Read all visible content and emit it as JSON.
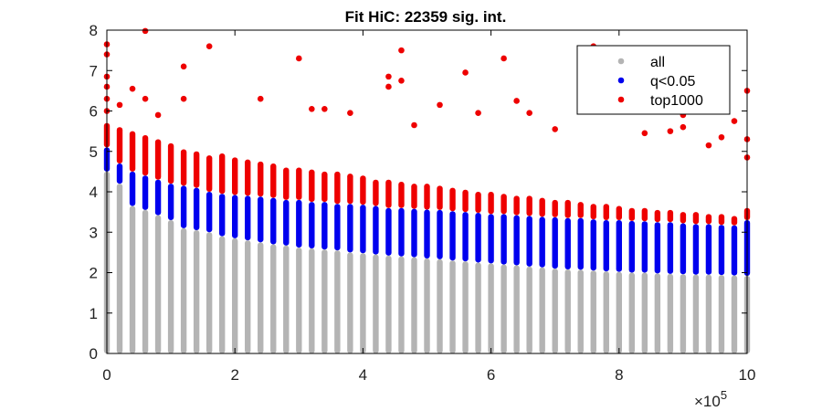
{
  "chart_data": {
    "type": "scatter",
    "title": "Fit HiC: 22359 sig. int.",
    "xlabel": "",
    "ylabel": "",
    "x_exponent_label": "×10",
    "x_exponent_power": "5",
    "xlim": [
      0,
      1000000
    ],
    "ylim": [
      0,
      8
    ],
    "x_ticks": [
      0,
      200000,
      400000,
      600000,
      800000,
      1000000
    ],
    "x_tick_labels": [
      "0",
      "2",
      "4",
      "6",
      "8",
      "10"
    ],
    "y_ticks": [
      0,
      1,
      2,
      3,
      4,
      5,
      6,
      7,
      8
    ],
    "y_tick_labels": [
      "0",
      "1",
      "2",
      "3",
      "4",
      "5",
      "6",
      "7",
      "8"
    ],
    "grid": false,
    "legend_position": "top-right",
    "bin_width": 20000,
    "series": [
      {
        "name": "all",
        "color": "#b4b4b4",
        "description": "per distance bin, points spanning y from 0 to the blue threshold"
      },
      {
        "name": "q<0.05",
        "color": "#0000ee",
        "bin_ranges_note": "per bin [low, high] of significant interactions",
        "bins": [
          [
            0,
            4.5,
            5.1
          ],
          [
            20000,
            4.2,
            4.7
          ],
          [
            40000,
            3.65,
            4.5
          ],
          [
            60000,
            3.55,
            4.4
          ],
          [
            80000,
            3.42,
            4.3
          ],
          [
            100000,
            3.3,
            4.2
          ],
          [
            120000,
            3.1,
            4.15
          ],
          [
            140000,
            3.05,
            4.1
          ],
          [
            160000,
            3.0,
            4.0
          ],
          [
            180000,
            2.9,
            3.95
          ],
          [
            200000,
            2.85,
            3.92
          ],
          [
            220000,
            2.8,
            3.9
          ],
          [
            240000,
            2.75,
            3.88
          ],
          [
            260000,
            2.7,
            3.85
          ],
          [
            280000,
            2.67,
            3.8
          ],
          [
            300000,
            2.62,
            3.8
          ],
          [
            320000,
            2.6,
            3.75
          ],
          [
            340000,
            2.57,
            3.75
          ],
          [
            360000,
            2.55,
            3.7
          ],
          [
            380000,
            2.5,
            3.7
          ],
          [
            400000,
            2.48,
            3.68
          ],
          [
            420000,
            2.45,
            3.65
          ],
          [
            440000,
            2.42,
            3.6
          ],
          [
            460000,
            2.4,
            3.6
          ],
          [
            480000,
            2.38,
            3.58
          ],
          [
            500000,
            2.35,
            3.56
          ],
          [
            520000,
            2.33,
            3.55
          ],
          [
            540000,
            2.3,
            3.52
          ],
          [
            560000,
            2.28,
            3.5
          ],
          [
            580000,
            2.25,
            3.48
          ],
          [
            600000,
            2.23,
            3.45
          ],
          [
            620000,
            2.2,
            3.45
          ],
          [
            640000,
            2.18,
            3.42
          ],
          [
            660000,
            2.15,
            3.4
          ],
          [
            680000,
            2.13,
            3.38
          ],
          [
            700000,
            2.1,
            3.37
          ],
          [
            720000,
            2.08,
            3.35
          ],
          [
            740000,
            2.07,
            3.35
          ],
          [
            760000,
            2.05,
            3.32
          ],
          [
            780000,
            2.03,
            3.3
          ],
          [
            800000,
            2.02,
            3.3
          ],
          [
            820000,
            2.0,
            3.28
          ],
          [
            840000,
            2.0,
            3.27
          ],
          [
            860000,
            1.98,
            3.25
          ],
          [
            880000,
            1.97,
            3.25
          ],
          [
            900000,
            1.96,
            3.22
          ],
          [
            920000,
            1.95,
            3.2
          ],
          [
            940000,
            1.95,
            3.2
          ],
          [
            960000,
            1.94,
            3.18
          ],
          [
            980000,
            1.93,
            3.17
          ],
          [
            1000000,
            1.92,
            3.3
          ]
        ]
      },
      {
        "name": "top1000",
        "color": "#ee0000",
        "bin_ranges_note": "per bin [x, top of dense red column]",
        "dense_tops": [
          [
            0,
            5.7
          ],
          [
            20000,
            5.6
          ],
          [
            40000,
            5.5
          ],
          [
            60000,
            5.4
          ],
          [
            80000,
            5.3
          ],
          [
            100000,
            5.2
          ],
          [
            120000,
            5.05
          ],
          [
            140000,
            5.0
          ],
          [
            160000,
            4.9
          ],
          [
            180000,
            4.95
          ],
          [
            200000,
            4.85
          ],
          [
            220000,
            4.8
          ],
          [
            240000,
            4.75
          ],
          [
            260000,
            4.7
          ],
          [
            280000,
            4.6
          ],
          [
            300000,
            4.6
          ],
          [
            320000,
            4.55
          ],
          [
            340000,
            4.5
          ],
          [
            360000,
            4.5
          ],
          [
            380000,
            4.45
          ],
          [
            400000,
            4.4
          ],
          [
            420000,
            4.3
          ],
          [
            440000,
            4.3
          ],
          [
            460000,
            4.25
          ],
          [
            480000,
            4.2
          ],
          [
            500000,
            4.2
          ],
          [
            520000,
            4.15
          ],
          [
            540000,
            4.1
          ],
          [
            560000,
            4.05
          ],
          [
            580000,
            4.0
          ],
          [
            600000,
            4.0
          ],
          [
            620000,
            3.95
          ],
          [
            640000,
            3.9
          ],
          [
            660000,
            3.9
          ],
          [
            680000,
            3.85
          ],
          [
            700000,
            3.8
          ],
          [
            720000,
            3.8
          ],
          [
            740000,
            3.75
          ],
          [
            760000,
            3.7
          ],
          [
            780000,
            3.7
          ],
          [
            800000,
            3.65
          ],
          [
            820000,
            3.6
          ],
          [
            840000,
            3.6
          ],
          [
            860000,
            3.55
          ],
          [
            880000,
            3.55
          ],
          [
            900000,
            3.5
          ],
          [
            920000,
            3.5
          ],
          [
            940000,
            3.45
          ],
          [
            960000,
            3.45
          ],
          [
            980000,
            3.4
          ],
          [
            1000000,
            3.6
          ]
        ],
        "outliers": [
          [
            0,
            7.65
          ],
          [
            0,
            7.4
          ],
          [
            0,
            6.85
          ],
          [
            0,
            6.6
          ],
          [
            0,
            6.3
          ],
          [
            0,
            6.0
          ],
          [
            20000,
            6.15
          ],
          [
            40000,
            6.55
          ],
          [
            60000,
            7.98
          ],
          [
            60000,
            6.3
          ],
          [
            80000,
            5.9
          ],
          [
            120000,
            7.1
          ],
          [
            120000,
            6.3
          ],
          [
            160000,
            7.6
          ],
          [
            240000,
            6.3
          ],
          [
            300000,
            7.3
          ],
          [
            320000,
            6.05
          ],
          [
            340000,
            6.05
          ],
          [
            380000,
            5.95
          ],
          [
            440000,
            6.85
          ],
          [
            440000,
            6.6
          ],
          [
            460000,
            7.5
          ],
          [
            460000,
            6.75
          ],
          [
            480000,
            5.65
          ],
          [
            520000,
            6.15
          ],
          [
            560000,
            6.95
          ],
          [
            580000,
            5.95
          ],
          [
            620000,
            7.3
          ],
          [
            640000,
            6.25
          ],
          [
            660000,
            5.95
          ],
          [
            700000,
            5.55
          ],
          [
            760000,
            7.6
          ],
          [
            780000,
            6.0
          ],
          [
            840000,
            5.45
          ],
          [
            880000,
            5.5
          ],
          [
            900000,
            5.9
          ],
          [
            900000,
            5.6
          ],
          [
            940000,
            5.15
          ],
          [
            960000,
            5.35
          ],
          [
            980000,
            5.75
          ],
          [
            1000000,
            6.5
          ],
          [
            1000000,
            5.3
          ],
          [
            1000000,
            4.85
          ]
        ]
      }
    ]
  }
}
